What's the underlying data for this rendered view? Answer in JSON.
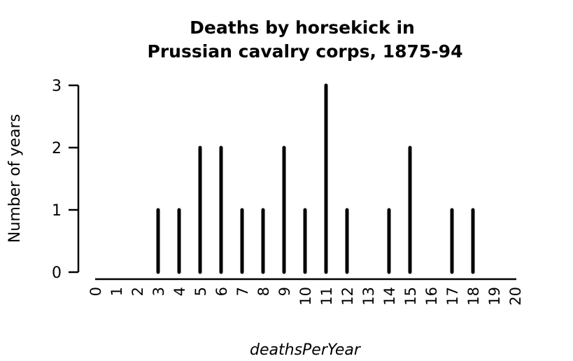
{
  "chart_data": {
    "type": "bar",
    "title": "Deaths by horsekick in\nPrussian cavalry corps, 1875-94",
    "title_lines": [
      "Deaths by horsekick in",
      "Prussian cavalry corps, 1875-94"
    ],
    "xlabel": "deathsPerYear",
    "ylabel": "Number of years",
    "x": [
      0,
      1,
      2,
      3,
      4,
      5,
      6,
      7,
      8,
      9,
      10,
      11,
      12,
      13,
      14,
      15,
      16,
      17,
      18,
      19,
      20
    ],
    "values": [
      0,
      0,
      0,
      1,
      1,
      2,
      2,
      1,
      1,
      2,
      1,
      3,
      1,
      0,
      1,
      2,
      0,
      1,
      1,
      0,
      0
    ],
    "xlim": [
      0,
      20
    ],
    "ylim": [
      0,
      3
    ],
    "yticks": [
      0,
      1,
      2,
      3
    ],
    "xtick_labels": [
      "0",
      "1",
      "2",
      "3",
      "4",
      "5",
      "6",
      "7",
      "8",
      "9",
      "10",
      "11",
      "12",
      "13",
      "14",
      "15",
      "16",
      "17",
      "18",
      "19",
      "20"
    ],
    "grid": false,
    "bar_style": "spike",
    "color": "#000000"
  }
}
